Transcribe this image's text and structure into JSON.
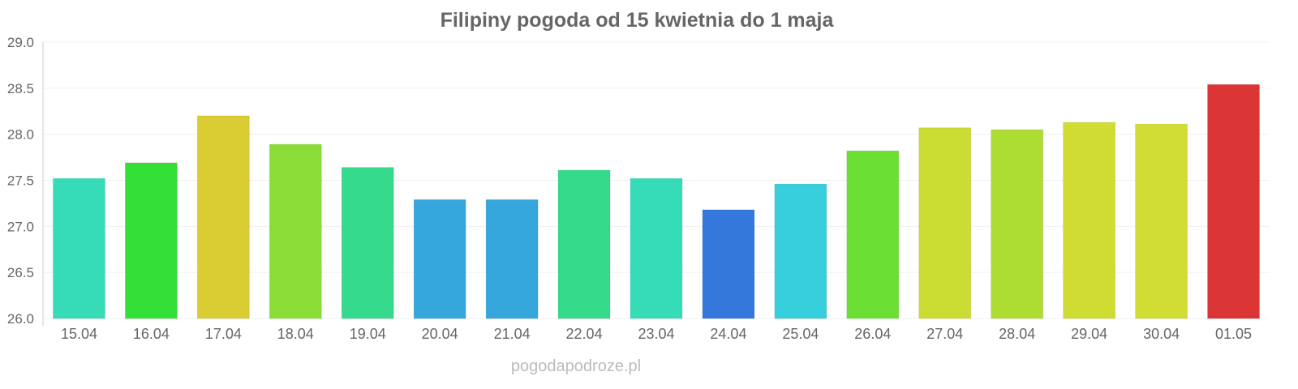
{
  "chart_data": {
    "type": "bar",
    "title": "Filipiny pogoda od 15 kwietnia do 1 maja",
    "xlabel": "",
    "ylabel": "",
    "ylim": [
      26.0,
      29.0
    ],
    "yticks": [
      "26.0",
      "26.5",
      "27.0",
      "27.5",
      "28.0",
      "28.5",
      "29.0"
    ],
    "grid": true,
    "categories": [
      "15.04",
      "16.04",
      "17.04",
      "18.04",
      "19.04",
      "20.04",
      "21.04",
      "22.04",
      "23.04",
      "24.04",
      "25.04",
      "26.04",
      "27.04",
      "28.04",
      "29.04",
      "30.04",
      "01.05"
    ],
    "values": [
      27.52,
      27.69,
      28.2,
      27.89,
      27.64,
      27.29,
      27.29,
      27.61,
      27.52,
      27.18,
      27.46,
      27.82,
      28.07,
      28.05,
      28.13,
      28.11,
      28.54
    ],
    "colors": [
      "#36dcb8",
      "#34df38",
      "#dacc33",
      "#89dd36",
      "#35da8c",
      "#35a7dc",
      "#35a7dc",
      "#35db8b",
      "#36dcb8",
      "#3578dc",
      "#36cfdb",
      "#6cdf34",
      "#cbdc32",
      "#addc32",
      "#cfdd33",
      "#d1dd33",
      "#dc3535"
    ]
  },
  "watermark": "pogodapodroze.pl"
}
